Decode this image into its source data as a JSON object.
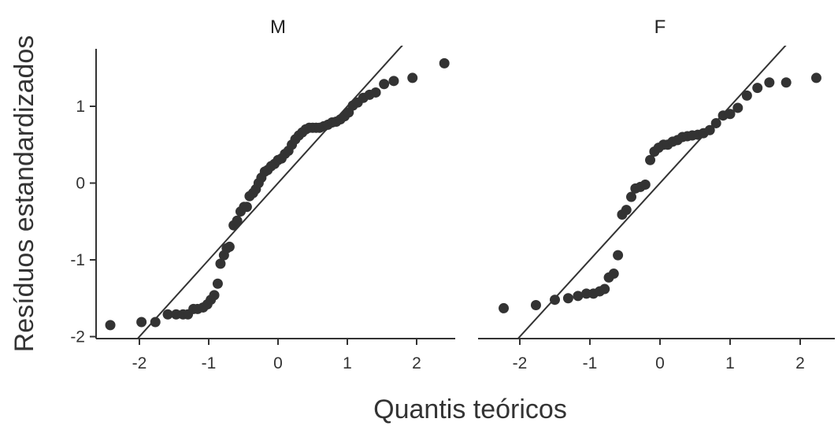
{
  "chart_data": {
    "type": "scatter",
    "subtype": "qq-plot-facets",
    "ylabel": "Resíduos estandardizados",
    "xlabel": "Quantis teóricos",
    "xlim": [
      -2.6,
      2.6
    ],
    "ylim": [
      -2.0,
      1.75
    ],
    "x_ticks": [
      -2,
      -1,
      0,
      1,
      2
    ],
    "x_tick_labels": [
      "-2",
      "-1",
      "0",
      "1",
      "2"
    ],
    "y_ticks": [
      -2,
      -1,
      0,
      1
    ],
    "y_tick_labels": [
      "-2",
      "-1",
      "0",
      "1"
    ],
    "point_color": "#333333",
    "line_color": "#333333",
    "grid": false,
    "panels": [
      {
        "title": "M",
        "reference_line": {
          "intercept": 0.0,
          "slope": 1.0
        },
        "points": [
          [
            -2.42,
            -1.85
          ],
          [
            -1.97,
            -1.81
          ],
          [
            -1.77,
            -1.81
          ],
          [
            -1.59,
            -1.71
          ],
          [
            -1.47,
            -1.71
          ],
          [
            -1.37,
            -1.71
          ],
          [
            -1.3,
            -1.71
          ],
          [
            -1.22,
            -1.64
          ],
          [
            -1.16,
            -1.64
          ],
          [
            -1.08,
            -1.62
          ],
          [
            -1.02,
            -1.58
          ],
          [
            -0.97,
            -1.52
          ],
          [
            -0.92,
            -1.46
          ],
          [
            -0.87,
            -1.31
          ],
          [
            -0.83,
            -1.05
          ],
          [
            -0.78,
            -0.94
          ],
          [
            -0.74,
            -0.85
          ],
          [
            -0.7,
            -0.83
          ],
          [
            -0.64,
            -0.55
          ],
          [
            -0.59,
            -0.49
          ],
          [
            -0.54,
            -0.37
          ],
          [
            -0.49,
            -0.31
          ],
          [
            -0.45,
            -0.31
          ],
          [
            -0.41,
            -0.17
          ],
          [
            -0.36,
            -0.13
          ],
          [
            -0.32,
            -0.08
          ],
          [
            -0.28,
            0.0
          ],
          [
            -0.24,
            0.07
          ],
          [
            -0.19,
            0.15
          ],
          [
            -0.15,
            0.17
          ],
          [
            -0.1,
            0.22
          ],
          [
            -0.05,
            0.25
          ],
          [
            0.0,
            0.3
          ],
          [
            0.05,
            0.32
          ],
          [
            0.1,
            0.38
          ],
          [
            0.15,
            0.42
          ],
          [
            0.2,
            0.5
          ],
          [
            0.25,
            0.57
          ],
          [
            0.3,
            0.62
          ],
          [
            0.35,
            0.66
          ],
          [
            0.4,
            0.7
          ],
          [
            0.45,
            0.72
          ],
          [
            0.5,
            0.72
          ],
          [
            0.55,
            0.72
          ],
          [
            0.6,
            0.72
          ],
          [
            0.66,
            0.74
          ],
          [
            0.72,
            0.76
          ],
          [
            0.78,
            0.79
          ],
          [
            0.84,
            0.8
          ],
          [
            0.9,
            0.83
          ],
          [
            0.96,
            0.87
          ],
          [
            1.02,
            0.92
          ],
          [
            1.08,
            1.01
          ],
          [
            1.15,
            1.05
          ],
          [
            1.23,
            1.11
          ],
          [
            1.32,
            1.15
          ],
          [
            1.41,
            1.18
          ],
          [
            1.53,
            1.29
          ],
          [
            1.67,
            1.33
          ],
          [
            1.94,
            1.37
          ],
          [
            2.4,
            1.56
          ]
        ]
      },
      {
        "title": "F",
        "reference_line": {
          "intercept": 0.0,
          "slope": 1.0
        },
        "points": [
          [
            -2.23,
            -1.63
          ],
          [
            -1.77,
            -1.59
          ],
          [
            -1.5,
            -1.52
          ],
          [
            -1.31,
            -1.5
          ],
          [
            -1.17,
            -1.47
          ],
          [
            -1.05,
            -1.44
          ],
          [
            -0.95,
            -1.44
          ],
          [
            -0.86,
            -1.41
          ],
          [
            -0.79,
            -1.38
          ],
          [
            -0.73,
            -1.23
          ],
          [
            -0.66,
            -1.18
          ],
          [
            -0.6,
            -0.94
          ],
          [
            -0.54,
            -0.41
          ],
          [
            -0.48,
            -0.35
          ],
          [
            -0.41,
            -0.18
          ],
          [
            -0.35,
            -0.07
          ],
          [
            -0.28,
            -0.05
          ],
          [
            -0.21,
            -0.02
          ],
          [
            -0.14,
            0.3
          ],
          [
            -0.08,
            0.41
          ],
          [
            -0.02,
            0.46
          ],
          [
            0.05,
            0.5
          ],
          [
            0.11,
            0.5
          ],
          [
            0.18,
            0.54
          ],
          [
            0.25,
            0.56
          ],
          [
            0.32,
            0.6
          ],
          [
            0.39,
            0.61
          ],
          [
            0.46,
            0.62
          ],
          [
            0.54,
            0.63
          ],
          [
            0.62,
            0.65
          ],
          [
            0.71,
            0.69
          ],
          [
            0.8,
            0.78
          ],
          [
            0.9,
            0.88
          ],
          [
            1.0,
            0.9
          ],
          [
            1.11,
            0.98
          ],
          [
            1.24,
            1.14
          ],
          [
            1.39,
            1.24
          ],
          [
            1.56,
            1.31
          ],
          [
            1.8,
            1.31
          ],
          [
            2.23,
            1.37
          ]
        ]
      }
    ]
  }
}
